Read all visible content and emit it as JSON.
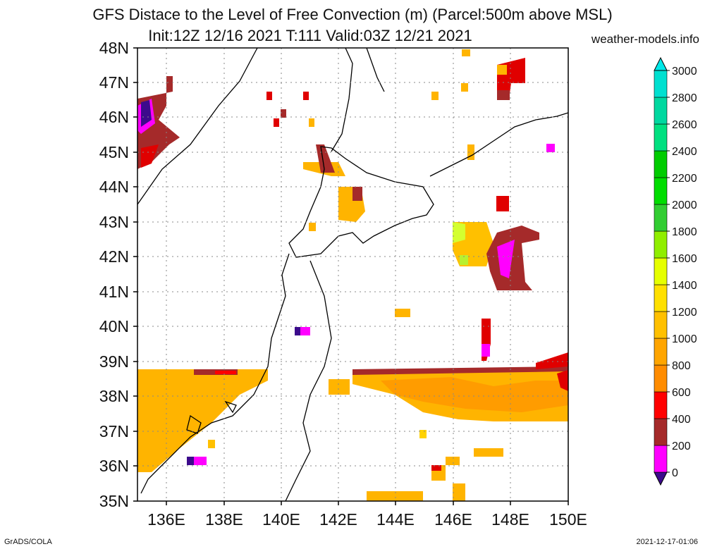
{
  "title": {
    "line1": "GFS Distace to the Level of Free Convection (m) (Parcel:500m above MSL)",
    "line2": "Init:12Z 12/16 2021 T:111 Valid:03Z 12/21 2021"
  },
  "site": "weather-models.info",
  "footer": {
    "left": "GrADS/COLA",
    "right": "2021-12-17-01:06"
  },
  "map": {
    "lon_range": [
      135,
      150
    ],
    "lat_range": [
      35,
      48
    ],
    "lat_labels": [
      "35N",
      "36N",
      "37N",
      "38N",
      "39N",
      "40N",
      "41N",
      "42N",
      "43N",
      "44N",
      "45N",
      "46N",
      "47N",
      "48N"
    ],
    "lon_labels": [
      "136E",
      "138E",
      "140E",
      "142E",
      "144E",
      "146E",
      "148E",
      "150E"
    ]
  },
  "colorbar": {
    "labels": [
      "0",
      "200",
      "400",
      "600",
      "800",
      "1000",
      "1200",
      "1400",
      "1600",
      "1800",
      "2000",
      "2200",
      "2400",
      "2600",
      "2800",
      "3000"
    ],
    "colors": [
      "#3c0a8c",
      "#ff00ff",
      "#a52a2a",
      "#ff0000",
      "#ff8c00",
      "#ffa500",
      "#ffc000",
      "#ffe000",
      "#e6ff00",
      "#90ee00",
      "#32cd32",
      "#00dd00",
      "#00cc00",
      "#00e080",
      "#00d8a0",
      "#00e0d0",
      "#00e8e8"
    ]
  }
}
